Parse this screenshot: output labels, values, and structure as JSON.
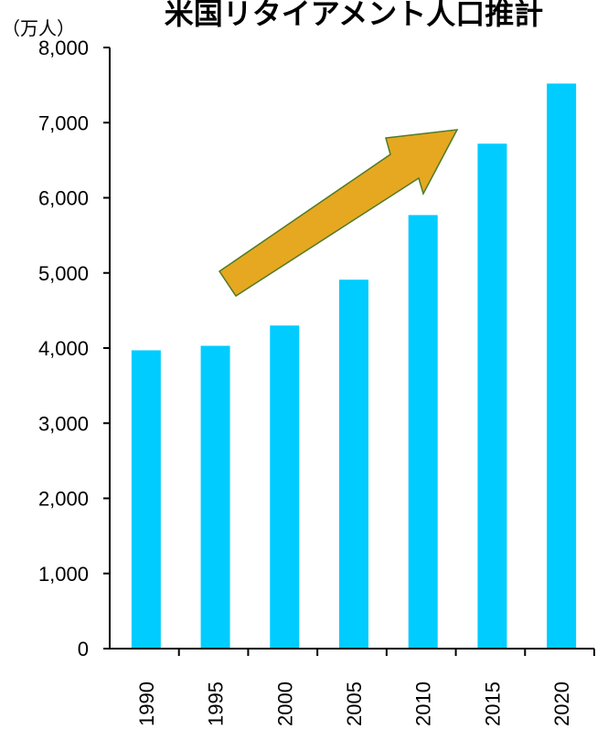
{
  "chart_data": {
    "type": "bar",
    "title": "米国リタイアメント人口推計",
    "unit_label": "（万人）",
    "categories": [
      "1990",
      "1995",
      "2000",
      "2005",
      "2010",
      "2015",
      "2020"
    ],
    "values": [
      3970,
      4030,
      4300,
      4910,
      5770,
      6720,
      7520
    ],
    "ylim": [
      0,
      8000
    ],
    "yticks": [
      0,
      1000,
      2000,
      3000,
      4000,
      5000,
      6000,
      7000,
      8000
    ],
    "ytick_labels": [
      "0",
      "1,000",
      "2,000",
      "3,000",
      "4,000",
      "5,000",
      "6,000",
      "7,000",
      "8,000"
    ],
    "grid": false,
    "annotation": "upward-trend-arrow",
    "colors": {
      "bar": "#00CCFF",
      "arrow_fill": "#E6A820",
      "arrow_stroke": "#4F7A28"
    }
  }
}
